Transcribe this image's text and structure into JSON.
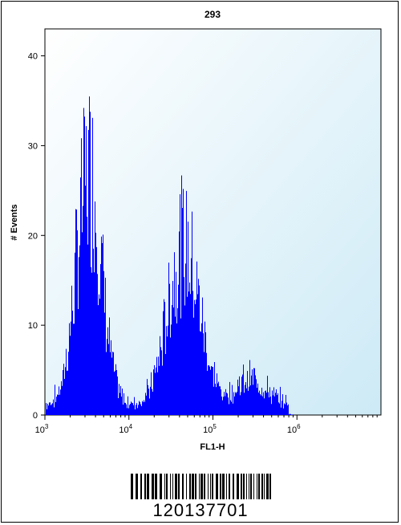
{
  "chart_data": {
    "type": "histogram",
    "title": "293",
    "xlabel": "FL1-H",
    "ylabel": "# Events",
    "x_scale": "log",
    "xlim": [
      1000,
      10000000
    ],
    "ylim": [
      0,
      43
    ],
    "y_ticks": [
      0,
      10,
      20,
      30,
      40
    ],
    "x_ticks": [
      {
        "value": 1000,
        "base": "10",
        "exp": "3"
      },
      {
        "value": 10000,
        "base": "10",
        "exp": "4"
      },
      {
        "value": 100000,
        "base": "10",
        "exp": "5"
      },
      {
        "value": 1000000,
        "base": "10",
        "exp": "6"
      }
    ],
    "fill_color": "#0000ff",
    "background_gradient": [
      "#ffffff",
      "#cdeaf6"
    ],
    "peaks": [
      {
        "center_log": 3.52,
        "width_log": 0.15,
        "height": 28
      },
      {
        "center_log": 4.65,
        "width_log": 0.19,
        "height": 19
      },
      {
        "center_log": 5.45,
        "width_log": 0.18,
        "height": 3
      }
    ],
    "baseline": 1.0
  },
  "barcode": {
    "number": "120137701"
  }
}
